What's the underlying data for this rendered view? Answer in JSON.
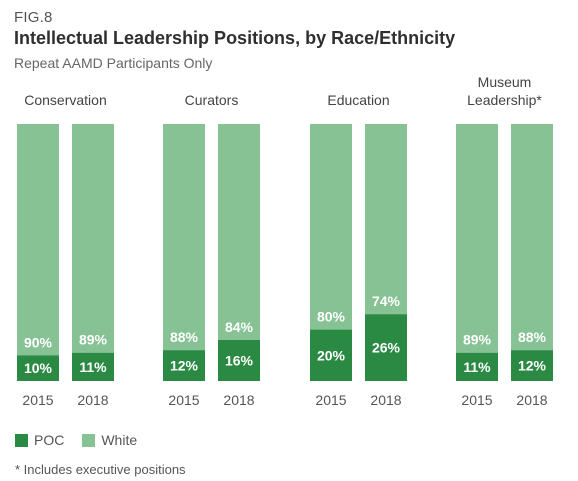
{
  "fig_label": "FIG.8",
  "title": "Intellectual Leadership Positions, by Race/Ethnicity",
  "subtitle": "Repeat AAMD Participants Only",
  "footnote": "* Includes executive positions",
  "colors": {
    "poc": "#2a8a43",
    "white": "#86c294"
  },
  "chart_data": {
    "type": "bar",
    "stacked": true,
    "percent_scale": true,
    "groups": [
      {
        "name": "Conservation",
        "years": [
          "2015",
          "2018"
        ],
        "poc": [
          10,
          11
        ],
        "white": [
          90,
          89
        ]
      },
      {
        "name": "Curators",
        "years": [
          "2015",
          "2018"
        ],
        "poc": [
          12,
          16
        ],
        "white": [
          88,
          84
        ]
      },
      {
        "name": "Education",
        "years": [
          "2015",
          "2018"
        ],
        "poc": [
          20,
          26
        ],
        "white": [
          80,
          74
        ]
      },
      {
        "name": "Museum Leadership*",
        "years": [
          "2015",
          "2018"
        ],
        "poc": [
          11,
          12
        ],
        "white": [
          89,
          88
        ]
      }
    ],
    "series": [
      {
        "name": "POC"
      },
      {
        "name": "White"
      }
    ],
    "legend_position": "bottom-left",
    "ylim": [
      0,
      100
    ],
    "grid": false
  }
}
